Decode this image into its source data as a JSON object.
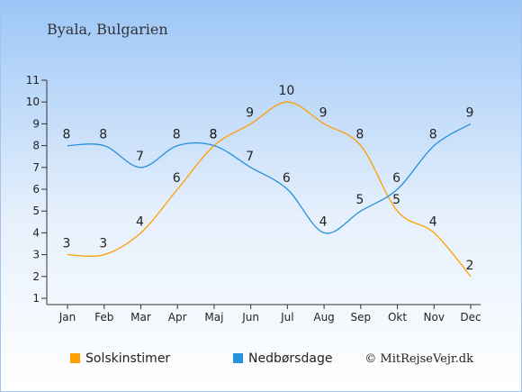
{
  "chart_data": {
    "type": "line",
    "title": "Byala, Bulgarien",
    "categories": [
      "Jan",
      "Feb",
      "Mar",
      "Apr",
      "Maj",
      "Jun",
      "Jul",
      "Aug",
      "Sep",
      "Okt",
      "Nov",
      "Dec"
    ],
    "yticks": [
      "1",
      "2",
      "3",
      "4",
      "5",
      "6",
      "7",
      "8",
      "9",
      "10",
      "11"
    ],
    "ylim": [
      1,
      11
    ],
    "grid": false,
    "legend_position": "bottom-left",
    "series": [
      {
        "name": "Solskinstimer",
        "color": "#FF9F00",
        "values": [
          3,
          3,
          4,
          6,
          8,
          9,
          10,
          9,
          8,
          5,
          4,
          2
        ],
        "labels": [
          "3",
          "3",
          "4",
          "6",
          "8",
          "9",
          "10",
          "9",
          "8",
          "5",
          "4",
          "2"
        ]
      },
      {
        "name": "Nedbørsdage",
        "color": "#2891DB",
        "values": [
          8,
          8,
          7,
          8,
          8,
          7,
          6,
          4,
          5,
          6,
          8,
          9
        ],
        "labels": [
          "8",
          "8",
          "7",
          "8",
          "8",
          "7",
          "6",
          "4",
          "5",
          "6",
          "8",
          "9"
        ]
      }
    ],
    "credit": "© MitRejseVejr.dk"
  }
}
